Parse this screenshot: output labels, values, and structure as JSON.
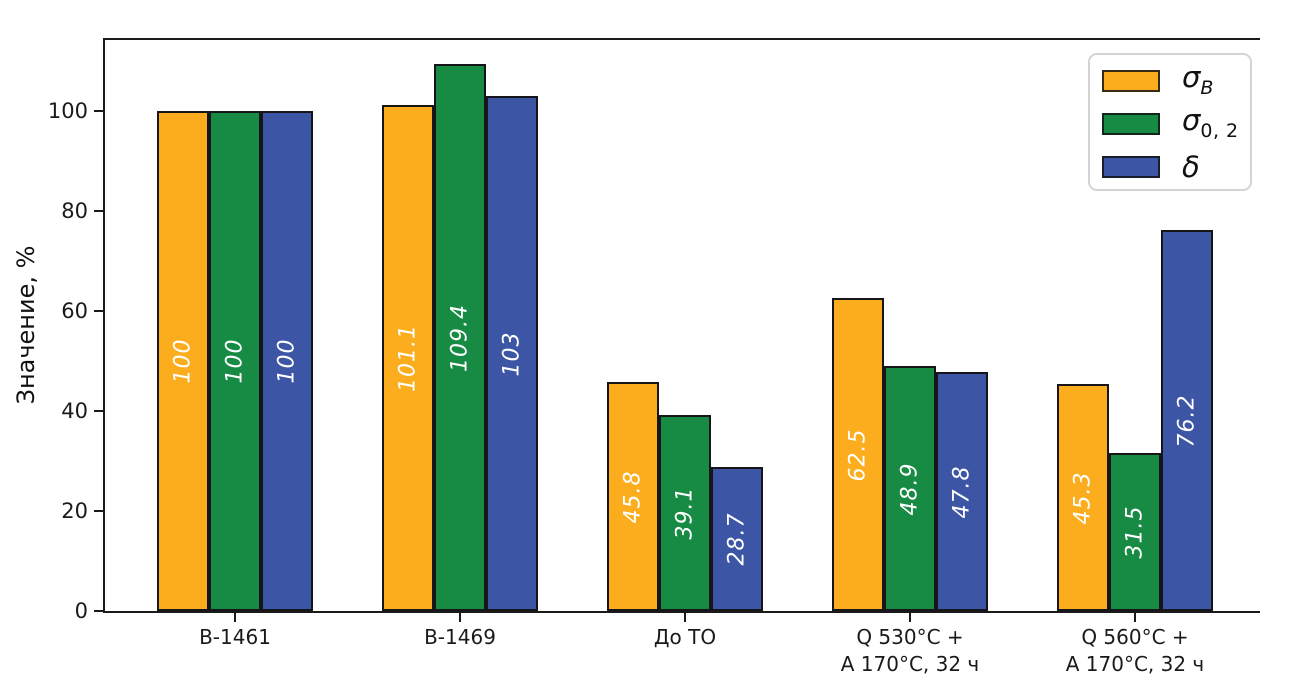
{
  "figure": {
    "background": "#ffffff"
  },
  "chart_data": {
    "type": "bar",
    "title": "",
    "xlabel": "",
    "ylabel": "Значение, %",
    "categories": [
      "В-1461",
      "В-1469",
      "До ТО",
      "Q 530°C +\nA 170°C, 32 ч",
      "Q 560°C +\nA 170°C, 32 ч"
    ],
    "series": [
      {
        "name": "sigma_B",
        "legend_symbol": "σ",
        "legend_subscript": "B",
        "color": "#FBAD1E",
        "values": [
          100,
          101.1,
          45.8,
          62.5,
          45.3
        ]
      },
      {
        "name": "sigma_0_2",
        "legend_symbol": "σ",
        "legend_subscript": "0, 2",
        "color": "#178B44",
        "values": [
          100,
          109.4,
          39.1,
          48.9,
          31.5
        ]
      },
      {
        "name": "delta",
        "legend_symbol": "δ",
        "legend_subscript": "",
        "color": "#3C55A5",
        "values": [
          100,
          103,
          28.7,
          47.8,
          76.2
        ]
      }
    ],
    "bar_value_labels": [
      [
        "100",
        "101.1",
        "45.8",
        "62.5",
        "45.3"
      ],
      [
        "100",
        "109.4",
        "39.1",
        "48.9",
        "31.5"
      ],
      [
        "100",
        "103",
        "28.7",
        "47.8",
        "76.2"
      ]
    ],
    "yticks": [
      0,
      20,
      40,
      60,
      80,
      100
    ],
    "ylim": [
      0,
      115
    ],
    "grid": false,
    "legend_position": "upper right",
    "bar_label_color": "#ffffff",
    "bar_edge_color": "#15151a",
    "axis_color": "#1a1a1a"
  }
}
